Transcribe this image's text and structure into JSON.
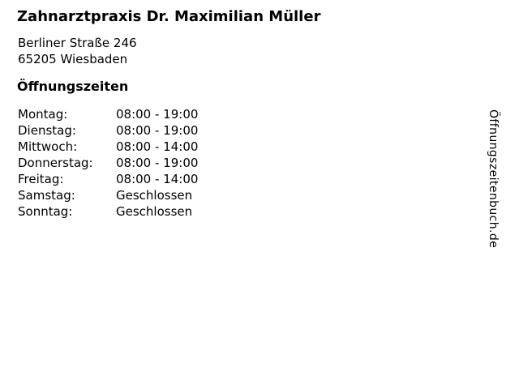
{
  "page": {
    "business_name": "Zahnarztpraxis Dr. Maximilian Müller",
    "address_line1": "Berliner Straße 246",
    "address_line2": "65205 Wiesbaden",
    "hours_heading": "Öffnungszeiten",
    "watermark": "Öffnungszeitenbuch.de"
  },
  "hours": {
    "rows": [
      {
        "day": "Montag:",
        "time": "08:00 - 19:00"
      },
      {
        "day": "Dienstag:",
        "time": "08:00 - 19:00"
      },
      {
        "day": "Mittwoch:",
        "time": "08:00 - 14:00"
      },
      {
        "day": "Donnerstag:",
        "time": "08:00 - 19:00"
      },
      {
        "day": "Freitag:",
        "time": "08:00 - 14:00"
      },
      {
        "day": "Samstag:",
        "time": "Geschlossen"
      },
      {
        "day": "Sonntag:",
        "time": "Geschlossen"
      }
    ]
  },
  "colors": {
    "text": "#000000",
    "background": "#ffffff"
  }
}
